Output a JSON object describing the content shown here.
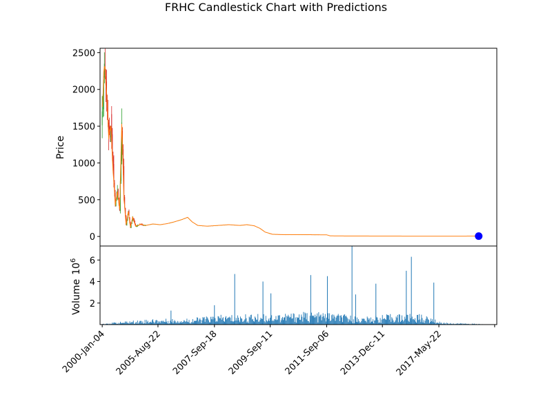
{
  "chart_data": {
    "type": "candlestick",
    "title": "FRHC Candlestick Chart with Predictions",
    "price_panel": {
      "ylabel": "Price",
      "ylim": [
        -130,
        2560
      ],
      "yticks": [
        0,
        500,
        1000,
        1500,
        2000,
        2500
      ],
      "ytick_labels": [
        "0",
        "500",
        "1000",
        "1500",
        "2000",
        "2500"
      ],
      "colors": {
        "up": "#2ca02c",
        "down": "#d62728",
        "close_line": "#ff7f0e",
        "prediction": "#0000ff"
      },
      "close_series": [
        [
          0,
          1700
        ],
        [
          3,
          2350
        ],
        [
          6,
          1900
        ],
        [
          9,
          1350
        ],
        [
          12,
          1500
        ],
        [
          15,
          900
        ],
        [
          18,
          420
        ],
        [
          21,
          620
        ],
        [
          24,
          360
        ],
        [
          27,
          1550
        ],
        [
          30,
          520
        ],
        [
          33,
          160
        ],
        [
          36,
          330
        ],
        [
          39,
          120
        ],
        [
          42,
          260
        ],
        [
          46,
          140
        ],
        [
          52,
          165
        ],
        [
          60,
          150
        ],
        [
          70,
          170
        ],
        [
          80,
          160
        ],
        [
          90,
          175
        ],
        [
          100,
          200
        ],
        [
          110,
          230
        ],
        [
          118,
          260
        ],
        [
          124,
          200
        ],
        [
          132,
          150
        ],
        [
          145,
          140
        ],
        [
          160,
          150
        ],
        [
          175,
          160
        ],
        [
          190,
          150
        ],
        [
          200,
          160
        ],
        [
          210,
          145
        ],
        [
          218,
          110
        ],
        [
          225,
          60
        ],
        [
          235,
          30
        ],
        [
          250,
          25
        ],
        [
          270,
          25
        ],
        [
          290,
          24
        ],
        [
          310,
          22
        ],
        [
          315,
          8
        ],
        [
          340,
          6
        ],
        [
          380,
          5
        ],
        [
          420,
          4
        ],
        [
          460,
          3
        ],
        [
          500,
          4
        ],
        [
          520,
          5
        ]
      ],
      "prediction_point": [
        520,
        5
      ]
    },
    "volume_panel": {
      "ylabel": "Volume",
      "scale_label": "10",
      "scale_exponent": "6",
      "ylim": [
        0,
        7.3
      ],
      "yticks": [
        2,
        4,
        6
      ],
      "ytick_labels": [
        "2",
        "4",
        "6"
      ],
      "bar_color": "#1f77b4",
      "spikes": [
        [
          95,
          1.3
        ],
        [
          155,
          1.8
        ],
        [
          183,
          4.7
        ],
        [
          222,
          4.0
        ],
        [
          233,
          2.9
        ],
        [
          288,
          4.6
        ],
        [
          311,
          4.5
        ],
        [
          345,
          7.3
        ],
        [
          350,
          2.8
        ],
        [
          378,
          3.8
        ],
        [
          420,
          5.0
        ],
        [
          427,
          6.3
        ],
        [
          458,
          3.9
        ]
      ],
      "baseline_profile": [
        [
          0,
          0.05
        ],
        [
          60,
          0.25
        ],
        [
          120,
          0.3
        ],
        [
          160,
          0.45
        ],
        [
          220,
          0.5
        ],
        [
          280,
          0.6
        ],
        [
          320,
          0.55
        ],
        [
          360,
          0.35
        ],
        [
          400,
          0.5
        ],
        [
          440,
          0.5
        ],
        [
          470,
          0.1
        ],
        [
          525,
          0.03
        ]
      ]
    },
    "x_axis": {
      "xlim": [
        -3,
        545
      ],
      "tick_positions": [
        0,
        77,
        155,
        232,
        310,
        387,
        465,
        542
      ],
      "tick_labels": [
        "2000-Jan-04",
        "2005-Aug-22",
        "2007-Sep-18",
        "2009-Sep-11",
        "2011-Sep-06",
        "2013-Dec-11",
        "2017-May-22",
        ""
      ]
    }
  }
}
